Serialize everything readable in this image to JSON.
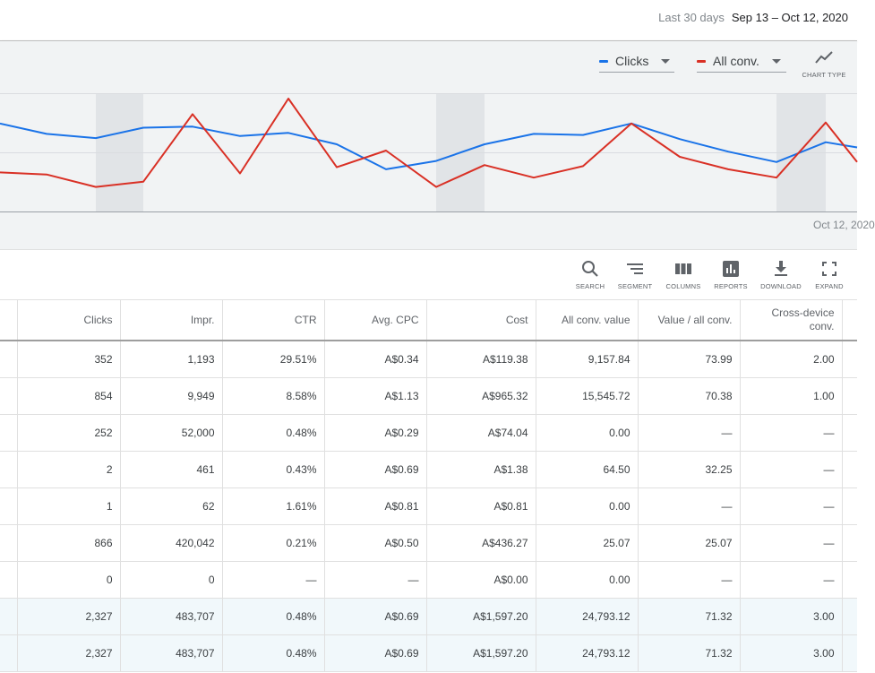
{
  "header": {
    "range_label": "Last 30 days",
    "range_value": "Sep 13 – Oct 12, 2020"
  },
  "chart": {
    "metric1": {
      "label": "Clicks",
      "color": "#1a73e8"
    },
    "metric2": {
      "label": "All conv.",
      "color": "#d93025"
    },
    "chart_type_label": "CHART TYPE",
    "x_end_label": "Oct 12, 2020"
  },
  "chart_data": {
    "type": "line",
    "series": [
      {
        "name": "Clicks",
        "values": [
          0.76,
          0.66,
          0.62,
          0.72,
          0.73,
          0.64,
          0.67,
          0.56,
          0.32,
          0.4,
          0.56,
          0.66,
          0.65,
          0.76,
          0.61,
          0.49,
          0.39,
          0.58,
          0.53
        ]
      },
      {
        "name": "All conv.",
        "values": [
          0.29,
          0.27,
          0.15,
          0.2,
          0.85,
          0.28,
          1.0,
          0.34,
          0.5,
          0.15,
          0.36,
          0.24,
          0.35,
          0.76,
          0.44,
          0.32,
          0.24,
          0.77,
          0.39
        ]
      }
    ],
    "x_positions": [
      0,
      52,
      107,
      160,
      215,
      268,
      322,
      376,
      431,
      487,
      541,
      596,
      651,
      705,
      759,
      813,
      867,
      922,
      957
    ],
    "shaded_bands": [
      [
        107,
        160
      ],
      [
        487,
        541
      ],
      [
        867,
        922
      ]
    ]
  },
  "toolbar": {
    "search": "SEARCH",
    "segment": "SEGMENT",
    "columns": "COLUMNS",
    "reports": "REPORTS",
    "download": "DOWNLOAD",
    "expand": "EXPAND"
  },
  "table": {
    "headers": [
      "Clicks",
      "Impr.",
      "CTR",
      "Avg. CPC",
      "Cost",
      "All conv. value",
      "Value / all conv.",
      "Cross-device conv."
    ],
    "rows": [
      [
        "352",
        "1,193",
        "29.51%",
        "A$0.34",
        "A$119.38",
        "9,157.84",
        "73.99",
        "2.00"
      ],
      [
        "854",
        "9,949",
        "8.58%",
        "A$1.13",
        "A$965.32",
        "15,545.72",
        "70.38",
        "1.00"
      ],
      [
        "252",
        "52,000",
        "0.48%",
        "A$0.29",
        "A$74.04",
        "0.00",
        "—",
        "—"
      ],
      [
        "2",
        "461",
        "0.43%",
        "A$0.69",
        "A$1.38",
        "64.50",
        "32.25",
        "—"
      ],
      [
        "1",
        "62",
        "1.61%",
        "A$0.81",
        "A$0.81",
        "0.00",
        "—",
        "—"
      ],
      [
        "866",
        "420,042",
        "0.21%",
        "A$0.50",
        "A$436.27",
        "25.07",
        "25.07",
        "—"
      ],
      [
        "0",
        "0",
        "—",
        "—",
        "A$0.00",
        "0.00",
        "—",
        "—"
      ]
    ],
    "totals": [
      [
        "2,327",
        "483,707",
        "0.48%",
        "A$0.69",
        "A$1,597.20",
        "24,793.12",
        "71.32",
        "3.00"
      ],
      [
        "2,327",
        "483,707",
        "0.48%",
        "A$0.69",
        "A$1,597.20",
        "24,793.12",
        "71.32",
        "3.00"
      ]
    ]
  }
}
